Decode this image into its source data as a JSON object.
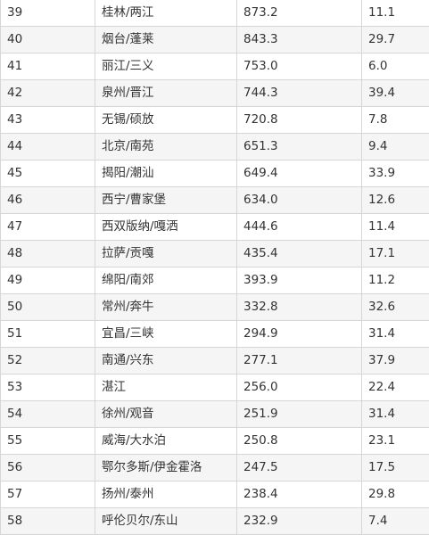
{
  "table": {
    "rows": [
      [
        "39",
        "桂林/两江",
        "873.2",
        "11.1"
      ],
      [
        "40",
        "烟台/蓬莱",
        "843.3",
        "29.7"
      ],
      [
        "41",
        "丽江/三义",
        "753.0",
        "6.0"
      ],
      [
        "42",
        "泉州/晋江",
        "744.3",
        "39.4"
      ],
      [
        "43",
        "无锡/硕放",
        "720.8",
        "7.8"
      ],
      [
        "44",
        "北京/南苑",
        "651.3",
        "9.4"
      ],
      [
        "45",
        "揭阳/潮汕",
        "649.4",
        "33.9"
      ],
      [
        "46",
        "西宁/曹家堡",
        "634.0",
        "12.6"
      ],
      [
        "47",
        "西双版纳/嘎洒",
        "444.6",
        "11.4"
      ],
      [
        "48",
        "拉萨/贡嘎",
        "435.4",
        "17.1"
      ],
      [
        "49",
        "绵阳/南郊",
        "393.9",
        "11.2"
      ],
      [
        "50",
        "常州/奔牛",
        "332.8",
        "32.6"
      ],
      [
        "51",
        "宜昌/三峡",
        "294.9",
        "31.4"
      ],
      [
        "52",
        "南通/兴东",
        "277.1",
        "37.9"
      ],
      [
        "53",
        "湛江",
        "256.0",
        "22.4"
      ],
      [
        "54",
        "徐州/观音",
        "251.9",
        "31.4"
      ],
      [
        "55",
        "威海/大水泊",
        "250.8",
        "23.1"
      ],
      [
        "56",
        "鄂尔多斯/伊金霍洛",
        "247.5",
        "17.5"
      ],
      [
        "57",
        "扬州/泰州",
        "238.4",
        "29.8"
      ],
      [
        "58",
        "呼伦贝尔/东山",
        "232.9",
        "7.4"
      ]
    ]
  }
}
